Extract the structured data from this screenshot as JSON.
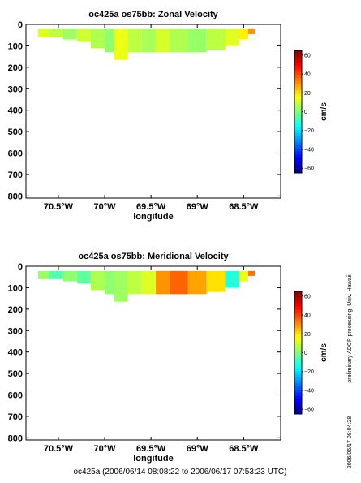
{
  "chart_data": [
    {
      "type": "heatmap",
      "title": "oc425a os75bb: Zonal Velocity",
      "xlabel": "longitude",
      "ylabel": "",
      "x_ticks": [
        -70.5,
        -70,
        -69.5,
        -69,
        -68.5
      ],
      "x_tick_labels": [
        "70.5°W",
        "70°W",
        "69.5°W",
        "69°W",
        "68.5°W"
      ],
      "y_ticks": [
        0,
        100,
        200,
        300,
        400,
        500,
        600,
        700,
        800
      ],
      "y_tick_labels": [
        "0",
        "100",
        "200",
        "300",
        "400",
        "500",
        "600",
        "700",
        "800"
      ],
      "xlim": [
        -70.85,
        -68.1
      ],
      "ylim": [
        810,
        0
      ],
      "y_inverted": true,
      "colorbar": {
        "label": "cm/s",
        "range": [
          -65,
          65
        ],
        "ticks": [
          60,
          40,
          20,
          0,
          -20,
          -40,
          -60
        ],
        "tick_labels": [
          "60",
          "40",
          "20",
          "0",
          "−20",
          "−40",
          "−60"
        ]
      },
      "data_extent": {
        "lon_min": -70.72,
        "lon_max": -68.38,
        "depth_min": 22,
        "depth_max": 165
      },
      "cells": [
        {
          "lon": [
            -70.72,
            -70.6
          ],
          "depth": [
            22,
            60
          ],
          "value": 12
        },
        {
          "lon": [
            -70.6,
            -70.45
          ],
          "depth": [
            22,
            60
          ],
          "value": 8
        },
        {
          "lon": [
            -70.45,
            -70.3
          ],
          "depth": [
            22,
            70
          ],
          "value": 4
        },
        {
          "lon": [
            -70.3,
            -70.15
          ],
          "depth": [
            22,
            80
          ],
          "value": 10
        },
        {
          "lon": [
            -70.15,
            -70.0
          ],
          "depth": [
            22,
            110
          ],
          "value": 6
        },
        {
          "lon": [
            -70.0,
            -69.9
          ],
          "depth": [
            22,
            130
          ],
          "value": 2
        },
        {
          "lon": [
            -69.9,
            -69.75
          ],
          "depth": [
            22,
            165
          ],
          "value": 14
        },
        {
          "lon": [
            -69.75,
            -69.6
          ],
          "depth": [
            22,
            130
          ],
          "value": 8
        },
        {
          "lon": [
            -69.6,
            -69.45
          ],
          "depth": [
            22,
            130
          ],
          "value": 5
        },
        {
          "lon": [
            -69.45,
            -69.3
          ],
          "depth": [
            22,
            130
          ],
          "value": 11
        },
        {
          "lon": [
            -69.3,
            -69.1
          ],
          "depth": [
            22,
            130
          ],
          "value": 6
        },
        {
          "lon": [
            -69.1,
            -68.9
          ],
          "depth": [
            22,
            130
          ],
          "value": 3
        },
        {
          "lon": [
            -68.9,
            -68.7
          ],
          "depth": [
            22,
            120
          ],
          "value": 8
        },
        {
          "lon": [
            -68.7,
            -68.55
          ],
          "depth": [
            22,
            100
          ],
          "value": 12
        },
        {
          "lon": [
            -68.55,
            -68.45
          ],
          "depth": [
            22,
            70
          ],
          "value": 18
        },
        {
          "lon": [
            -68.45,
            -68.38
          ],
          "depth": [
            22,
            45
          ],
          "value": 30
        }
      ]
    },
    {
      "type": "heatmap",
      "title": "oc425a os75bb: Meridional Velocity",
      "xlabel": "longitude",
      "ylabel": "",
      "x_ticks": [
        -70.5,
        -70,
        -69.5,
        -69,
        -68.5
      ],
      "x_tick_labels": [
        "70.5°W",
        "70°W",
        "69.5°W",
        "69°W",
        "68.5°W"
      ],
      "y_ticks": [
        0,
        100,
        200,
        300,
        400,
        500,
        600,
        700,
        800
      ],
      "y_tick_labels": [
        "0",
        "100",
        "200",
        "300",
        "400",
        "500",
        "600",
        "700",
        "800"
      ],
      "xlim": [
        -70.85,
        -68.1
      ],
      "ylim": [
        810,
        0
      ],
      "y_inverted": true,
      "colorbar": {
        "label": "cm/s",
        "range": [
          -65,
          65
        ],
        "ticks": [
          60,
          40,
          20,
          0,
          -20,
          -40,
          -60
        ],
        "tick_labels": [
          "60",
          "40",
          "20",
          "0",
          "−20",
          "−40",
          "−60"
        ]
      },
      "data_extent": {
        "lon_min": -70.72,
        "lon_max": -68.38,
        "depth_min": 22,
        "depth_max": 165
      },
      "cells": [
        {
          "lon": [
            -70.72,
            -70.6
          ],
          "depth": [
            22,
            60
          ],
          "value": 4
        },
        {
          "lon": [
            -70.6,
            -70.45
          ],
          "depth": [
            22,
            60
          ],
          "value": -6
        },
        {
          "lon": [
            -70.45,
            -70.3
          ],
          "depth": [
            22,
            70
          ],
          "value": 2
        },
        {
          "lon": [
            -70.3,
            -70.15
          ],
          "depth": [
            22,
            80
          ],
          "value": -4
        },
        {
          "lon": [
            -70.15,
            -70.0
          ],
          "depth": [
            22,
            110
          ],
          "value": 6
        },
        {
          "lon": [
            -70.0,
            -69.9
          ],
          "depth": [
            22,
            130
          ],
          "value": 2
        },
        {
          "lon": [
            -69.9,
            -69.75
          ],
          "depth": [
            22,
            165
          ],
          "value": 4
        },
        {
          "lon": [
            -69.75,
            -69.6
          ],
          "depth": [
            22,
            130
          ],
          "value": 8
        },
        {
          "lon": [
            -69.6,
            -69.45
          ],
          "depth": [
            22,
            130
          ],
          "value": 12
        },
        {
          "lon": [
            -69.45,
            -69.3
          ],
          "depth": [
            22,
            130
          ],
          "value": 30
        },
        {
          "lon": [
            -69.3,
            -69.1
          ],
          "depth": [
            22,
            130
          ],
          "value": 36
        },
        {
          "lon": [
            -69.1,
            -68.9
          ],
          "depth": [
            22,
            130
          ],
          "value": 28
        },
        {
          "lon": [
            -68.9,
            -68.7
          ],
          "depth": [
            22,
            120
          ],
          "value": 20
        },
        {
          "lon": [
            -68.7,
            -68.55
          ],
          "depth": [
            22,
            100
          ],
          "value": -12
        },
        {
          "lon": [
            -68.55,
            -68.45
          ],
          "depth": [
            22,
            70
          ],
          "value": 14
        },
        {
          "lon": [
            -68.45,
            -68.38
          ],
          "depth": [
            22,
            45
          ],
          "value": 34
        }
      ]
    }
  ],
  "footer": "oc425a (2006/06/14 08:08:22 to 2006/06/17 07:53:23 UTC)",
  "side_note": "preliminary ADCP processing,  Univ. Hawaii",
  "side_stamp": "2006/06/17 08:04:28"
}
